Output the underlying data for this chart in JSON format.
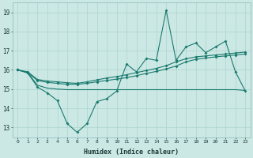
{
  "x": [
    0,
    1,
    2,
    3,
    4,
    5,
    6,
    7,
    8,
    9,
    10,
    11,
    12,
    13,
    14,
    15,
    16,
    17,
    18,
    19,
    20,
    21,
    22,
    23
  ],
  "line_spiky": [
    16.0,
    15.85,
    15.1,
    14.8,
    14.4,
    13.2,
    12.75,
    13.2,
    14.35,
    14.5,
    14.9,
    16.3,
    15.9,
    16.6,
    16.5,
    19.1,
    16.5,
    17.2,
    17.4,
    16.9,
    17.2,
    17.5,
    15.9,
    14.9
  ],
  "line_trend1": [
    16.0,
    15.85,
    15.45,
    15.35,
    15.3,
    15.25,
    15.25,
    15.3,
    15.38,
    15.45,
    15.52,
    15.6,
    15.7,
    15.82,
    15.92,
    16.05,
    16.2,
    16.42,
    16.55,
    16.62,
    16.68,
    16.73,
    16.78,
    16.83
  ],
  "line_trend2": [
    16.0,
    15.9,
    15.5,
    15.42,
    15.38,
    15.33,
    15.3,
    15.38,
    15.48,
    15.58,
    15.65,
    15.75,
    15.86,
    15.97,
    16.08,
    16.22,
    16.42,
    16.58,
    16.68,
    16.73,
    16.78,
    16.83,
    16.88,
    16.93
  ],
  "line_flat": [
    16.0,
    15.85,
    15.2,
    15.05,
    15.0,
    14.97,
    14.97,
    14.97,
    14.97,
    14.97,
    14.97,
    14.97,
    14.97,
    14.97,
    14.97,
    14.97,
    14.97,
    14.97,
    14.97,
    14.97,
    14.97,
    14.97,
    14.97,
    14.93
  ],
  "color": "#1a7a6e",
  "bg_color": "#cce8e4",
  "grid_color": "#aad4d0",
  "xlabel": "Humidex (Indice chaleur)",
  "ylim": [
    12.5,
    19.5
  ],
  "xlim": [
    -0.5,
    23.5
  ],
  "yticks": [
    13,
    14,
    15,
    16,
    17,
    18,
    19
  ],
  "xticks": [
    0,
    1,
    2,
    3,
    4,
    5,
    6,
    7,
    8,
    9,
    10,
    11,
    12,
    13,
    14,
    15,
    16,
    17,
    18,
    19,
    20,
    21,
    22,
    23
  ]
}
